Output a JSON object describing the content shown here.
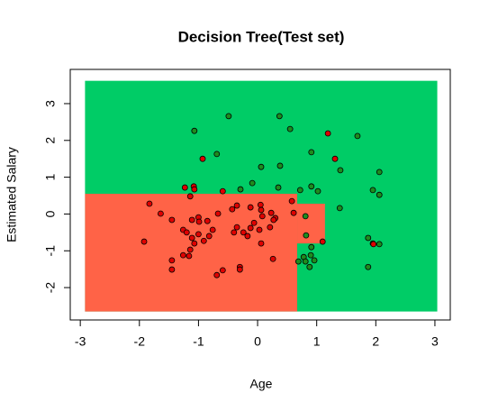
{
  "chart_data": {
    "type": "scatter",
    "title": "Decision Tree(Test set)",
    "x_label": "Age",
    "y_label": "Estimated Salary",
    "xlim": [
      -3.17,
      3.26
    ],
    "ylim": [
      -2.88,
      3.93
    ],
    "xticks": [
      -3,
      -2,
      -1,
      0,
      1,
      2,
      3
    ],
    "yticks": [
      -2,
      -1,
      0,
      1,
      2,
      3
    ],
    "regions": [
      {
        "color": "#00cc66",
        "x": [
          -2.92,
          3.04
        ],
        "y": [
          -2.65,
          3.62
        ]
      },
      {
        "color": "#ff6347",
        "x": [
          -2.92,
          0.67
        ],
        "y": [
          -2.65,
          0.55
        ]
      },
      {
        "color": "#ff6347",
        "x": [
          0.67,
          1.14
        ],
        "y": [
          -0.8,
          0.28
        ]
      }
    ],
    "series": [
      {
        "color": "#1e8c1e",
        "x": [
          -1.07,
          -0.49,
          0.37,
          0.55,
          0.91,
          1.69,
          1.4,
          2.06,
          0.06,
          0.38,
          -0.09,
          -0.69,
          -0.29,
          0.35,
          0.72,
          0.91,
          1.02,
          1.95,
          2.06,
          1.39,
          0.81,
          0.82,
          1.87,
          1.95,
          2.06,
          0.69,
          0.78,
          0.9,
          0.96,
          0.88,
          0.81,
          1.87,
          0.91
        ],
        "values": [
          2.26,
          2.66,
          2.66,
          2.31,
          1.68,
          2.12,
          1.19,
          1.14,
          1.28,
          1.31,
          0.84,
          1.63,
          0.67,
          0.72,
          0.65,
          0.75,
          0.62,
          0.65,
          0.52,
          0.16,
          -0.06,
          -0.58,
          -0.65,
          -0.8,
          -0.82,
          -1.29,
          -1.17,
          -1.12,
          -1.26,
          -1.44,
          -1.29,
          -1.44,
          -0.9
        ]
      },
      {
        "color": "#e00000",
        "x": [
          1.19,
          1.31,
          -0.93,
          -1.08,
          -1.23,
          -1.07,
          -1.14,
          -0.59,
          -1.83,
          -1.64,
          -1.45,
          -1.26,
          -1.11,
          -1.0,
          -0.85,
          -0.43,
          -0.35,
          -0.12,
          0.05,
          0.06,
          0.23,
          0.3,
          0.58,
          0.61,
          0.08,
          -0.06,
          -0.12,
          -0.35,
          -0.4,
          -0.24,
          -0.17,
          0.03,
          0.21,
          0.27,
          -0.76,
          -0.82,
          -0.91,
          -1.0,
          -1.07,
          -1.2,
          -1.11,
          -1.92,
          -1.14,
          -1.26,
          -1.16,
          -1.45,
          -1.45,
          -0.59,
          -0.69,
          -0.3,
          -0.3,
          0.26,
          0.06,
          1.1,
          1.96,
          -0.67,
          -0.99
        ],
        "values": [
          2.19,
          1.5,
          1.5,
          0.75,
          0.72,
          0.67,
          0.48,
          0.62,
          0.28,
          0.01,
          -0.16,
          -0.43,
          -0.16,
          -0.09,
          -0.19,
          0.13,
          0.23,
          0.18,
          0.25,
          0.11,
          0.03,
          -0.11,
          0.35,
          0.03,
          -0.06,
          -0.24,
          -0.38,
          -0.36,
          -0.5,
          -0.5,
          -0.6,
          -0.43,
          -0.36,
          -0.16,
          -0.43,
          -0.6,
          -0.73,
          -0.55,
          -0.8,
          -0.5,
          -0.65,
          -0.75,
          -0.97,
          -1.12,
          -1.14,
          -1.26,
          -1.51,
          -1.53,
          -1.66,
          -1.44,
          -1.51,
          -1.22,
          -0.8,
          -0.75,
          -0.82,
          0.01,
          -0.21
        ]
      }
    ]
  }
}
